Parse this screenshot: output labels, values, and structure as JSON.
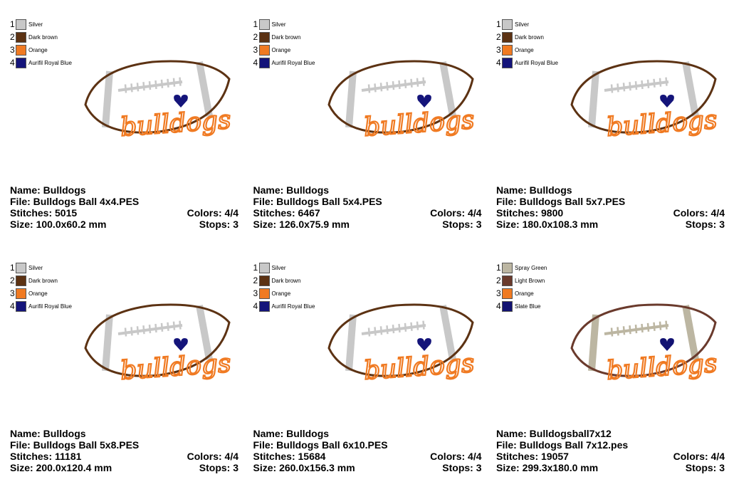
{
  "design_text": "bulldogs",
  "cards": [
    {
      "threads": [
        {
          "num": "1",
          "name": "Silver",
          "color": "#c8c8c8"
        },
        {
          "num": "2",
          "name": "Dark brown",
          "color": "#5c3213"
        },
        {
          "num": "3",
          "name": "Orange",
          "color": "#f07a22"
        },
        {
          "num": "4",
          "name": "Aurifil Royal Blue",
          "color": "#14147a"
        }
      ],
      "name": "Name: Bulldogs",
      "file": "File: Bulldogs Ball 4x4.PES",
      "stitches": "Stitches: 5015",
      "colors": "Colors: 4/4",
      "size": "Size: 100.0x60.2 mm",
      "stops": "Stops: 3"
    },
    {
      "threads": [
        {
          "num": "1",
          "name": "Silver",
          "color": "#c8c8c8"
        },
        {
          "num": "2",
          "name": "Dark brown",
          "color": "#5c3213"
        },
        {
          "num": "3",
          "name": "Orange",
          "color": "#f07a22"
        },
        {
          "num": "4",
          "name": "Aurifil Royal Blue",
          "color": "#14147a"
        }
      ],
      "name": "Name: Bulldogs",
      "file": "File: Bulldogs Ball 5x4.PES",
      "stitches": "Stitches: 6467",
      "colors": "Colors: 4/4",
      "size": "Size: 126.0x75.9 mm",
      "stops": "Stops: 3"
    },
    {
      "threads": [
        {
          "num": "1",
          "name": "Silver",
          "color": "#c8c8c8"
        },
        {
          "num": "2",
          "name": "Dark brown",
          "color": "#5c3213"
        },
        {
          "num": "3",
          "name": "Orange",
          "color": "#f07a22"
        },
        {
          "num": "4",
          "name": "Aurifil Royal Blue",
          "color": "#14147a"
        }
      ],
      "name": "Name: Bulldogs",
      "file": "File: Bulldogs Ball 5x7.PES",
      "stitches": "Stitches: 9800",
      "colors": "Colors: 4/4",
      "size": "Size: 180.0x108.3 mm",
      "stops": "Stops: 3"
    },
    {
      "threads": [
        {
          "num": "1",
          "name": "Silver",
          "color": "#c8c8c8"
        },
        {
          "num": "2",
          "name": "Dark brown",
          "color": "#5c3213"
        },
        {
          "num": "3",
          "name": "Orange",
          "color": "#f07a22"
        },
        {
          "num": "4",
          "name": "Aurifil Royal Blue",
          "color": "#14147a"
        }
      ],
      "name": "Name: Bulldogs",
      "file": "File: Bulldogs Ball 5x8.PES",
      "stitches": "Stitches: 11181",
      "colors": "Colors: 4/4",
      "size": "Size: 200.0x120.4 mm",
      "stops": "Stops: 3"
    },
    {
      "threads": [
        {
          "num": "1",
          "name": "Silver",
          "color": "#c8c8c8"
        },
        {
          "num": "2",
          "name": "Dark brown",
          "color": "#5c3213"
        },
        {
          "num": "3",
          "name": "Orange",
          "color": "#f07a22"
        },
        {
          "num": "4",
          "name": "Aurifil Royal Blue",
          "color": "#14147a"
        }
      ],
      "name": "Name: Bulldogs",
      "file": "File: Bulldogs Ball 6x10.PES",
      "stitches": "Stitches: 15684",
      "colors": "Colors: 4/4",
      "size": "Size: 260.0x156.3 mm",
      "stops": "Stops: 3"
    },
    {
      "threads": [
        {
          "num": "1",
          "name": "Spray Green",
          "color": "#bcb6a2"
        },
        {
          "num": "2",
          "name": "Light Brown",
          "color": "#6a3a2c"
        },
        {
          "num": "3",
          "name": "Orange",
          "color": "#f07a22"
        },
        {
          "num": "4",
          "name": "Slate Blue",
          "color": "#121272"
        }
      ],
      "name": "Name: Bulldogsball7x12",
      "file": "File: Bulldogs Ball 7x12.pes",
      "stitches": "Stitches: 19057",
      "colors": "Colors: 4/4",
      "size": "Size: 299.3x180.0 mm",
      "stops": "Stops: 3"
    }
  ]
}
